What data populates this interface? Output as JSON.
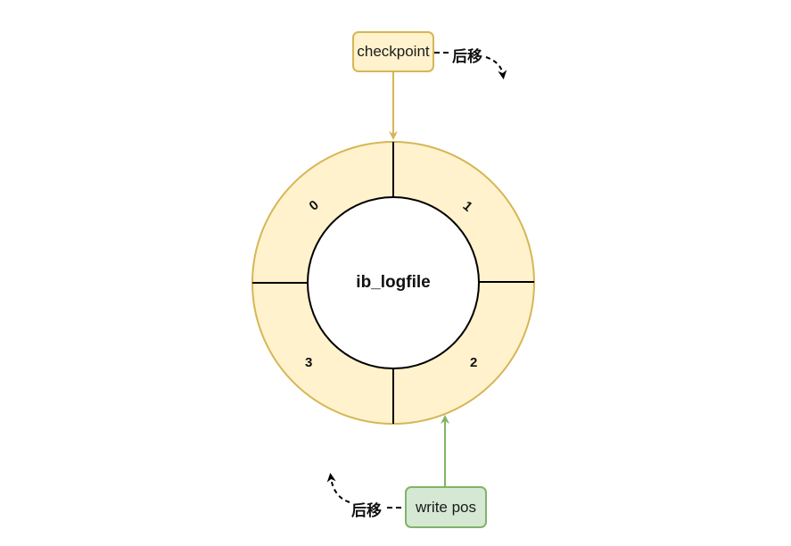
{
  "nodes": {
    "checkpoint": "checkpoint",
    "write_pos": "write pos",
    "center": "ib_logfile"
  },
  "segments": [
    "0",
    "1",
    "2",
    "3"
  ],
  "move_labels": {
    "checkpoint_move": "后移",
    "write_pos_move": "后移"
  },
  "colors": {
    "ring_fill": "#fff2cc",
    "ring_stroke": "#d6b656",
    "checkpoint_fill": "#fff2cc",
    "checkpoint_stroke": "#d6b656",
    "write_pos_fill": "#d5e8d4",
    "write_pos_stroke": "#82b366"
  }
}
